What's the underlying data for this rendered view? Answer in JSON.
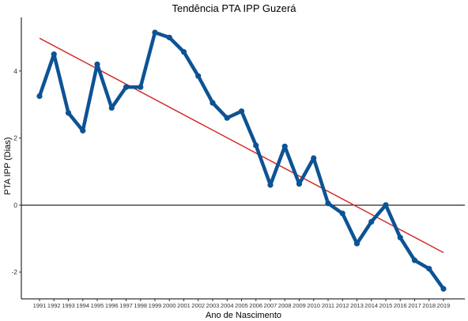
{
  "chart_data": {
    "type": "line",
    "title": "Tendência PTA IPP Guzerá",
    "xlabel": "Ano de Nascimento",
    "ylabel": "PTA IPP (Dias)",
    "x": [
      "1991",
      "1992",
      "1993",
      "1994",
      "1995",
      "1996",
      "1997",
      "1998",
      "1999",
      "2000",
      "2001",
      "2002",
      "2003",
      "2004",
      "2005",
      "2006",
      "2007",
      "2008",
      "2009",
      "2010",
      "2011",
      "2012",
      "2013",
      "2014",
      "2015",
      "2016",
      "2017",
      "2018",
      "2019"
    ],
    "series": [
      {
        "values": [
          3.25,
          4.5,
          2.75,
          2.22,
          4.2,
          2.9,
          3.52,
          3.52,
          5.15,
          5.0,
          4.57,
          3.85,
          3.05,
          2.6,
          2.8,
          1.78,
          0.6,
          1.75,
          0.63,
          1.4,
          0.05,
          -0.25,
          -1.15,
          -0.5,
          0.0,
          -0.97,
          -1.65,
          -1.9,
          -2.5
        ],
        "color": "#0d5394"
      }
    ],
    "trend": {
      "x_start": "1991",
      "y_start": 4.98,
      "x_end": "2019",
      "y_end": -1.42,
      "color": "#d42d2d"
    },
    "yticks": [
      -2,
      0,
      2,
      4
    ],
    "ylim": [
      -2.8,
      5.6
    ],
    "hline": 0,
    "grid": false,
    "legend": "none"
  }
}
